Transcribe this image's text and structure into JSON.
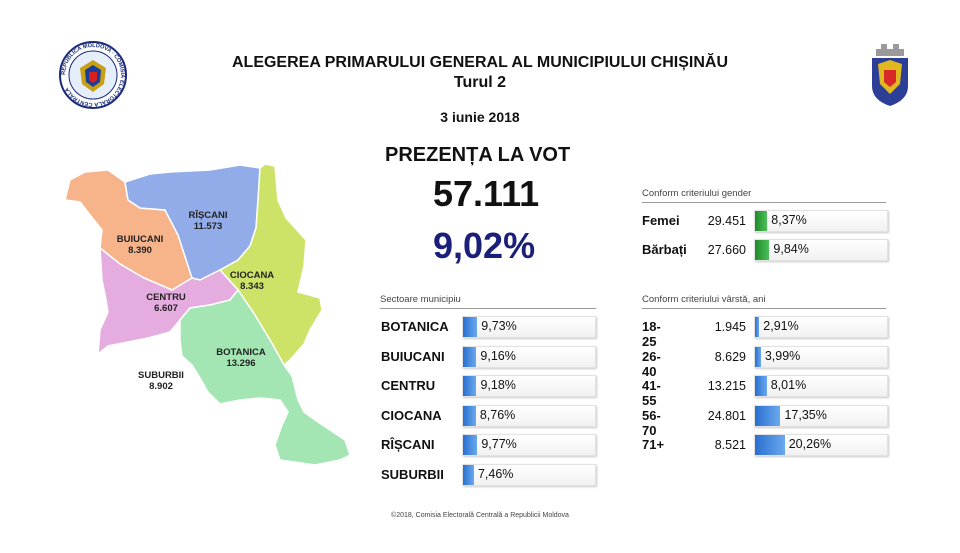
{
  "header": {
    "title": "ALEGEREA PRIMARULUI GENERAL AL MUNICIPIULUI CHIȘINĂU",
    "round": "Turul 2",
    "date": "3 iunie 2018"
  },
  "seal": {
    "ring_text": "REPUBLICA MOLDOVA · COMISIA ELECTORALĂ CENTRALĂ"
  },
  "turnout": {
    "label": "PREZENȚA LA VOT",
    "count": "57.111",
    "percent": "9,02%"
  },
  "map": {
    "regions": [
      {
        "name": "RÎȘCANI",
        "value": "11.573",
        "color": "#92acea"
      },
      {
        "name": "BUIUCANI",
        "value": "8.390",
        "color": "#f7b48a"
      },
      {
        "name": "CIOCANA",
        "value": "8.343",
        "color": "#cde368"
      },
      {
        "name": "CENTRU",
        "value": "6.607",
        "color": "#e5ace0"
      },
      {
        "name": "BOTANICA",
        "value": "13.296",
        "color": "#a3e6b4"
      },
      {
        "name": "SUBURBII",
        "value": "8.902",
        "color": "#ffffff"
      }
    ]
  },
  "sectors": {
    "heading": "Sectoare municipiu",
    "rows": [
      {
        "name": "BOTANICA",
        "pct": "9,73%",
        "level": 9.73
      },
      {
        "name": "BUIUCANI",
        "pct": "9,16%",
        "level": 9.16
      },
      {
        "name": "CENTRU",
        "pct": "9,18%",
        "level": 9.18
      },
      {
        "name": "CIOCANA",
        "pct": "8,76%",
        "level": 8.76
      },
      {
        "name": "RÎȘCANI",
        "pct": "9,77%",
        "level": 9.77
      },
      {
        "name": "SUBURBII",
        "pct": "7,46%",
        "level": 7.46
      }
    ]
  },
  "gender": {
    "heading": "Conform criteriului gender",
    "rows": [
      {
        "name": "Femei",
        "count": "29.451",
        "pct": "8,37%",
        "level": 8.37
      },
      {
        "name": "Bărbați",
        "count": "27.660",
        "pct": "9,84%",
        "level": 9.84
      }
    ]
  },
  "age": {
    "heading": "Conform criteriului vârstă, ani",
    "rows": [
      {
        "name": "18-25",
        "count": "1.945",
        "pct": "2,91%",
        "level": 2.91
      },
      {
        "name": "26-40",
        "count": "8.629",
        "pct": "3,99%",
        "level": 3.99
      },
      {
        "name": "41-55",
        "count": "13.215",
        "pct": "8,01%",
        "level": 8.01
      },
      {
        "name": "56-70",
        "count": "24.801",
        "pct": "17,35%",
        "level": 17.35
      },
      {
        "name": "71+",
        "count": "8.521",
        "pct": "20,26%",
        "level": 20.26
      }
    ]
  },
  "colors": {
    "accent_navy": "#1a1f7a",
    "bar_blue": "#3a84e0",
    "bar_green": "#2aa03a"
  },
  "footer": "©2018, Comisia Electorală Centrală a Republicii Moldova"
}
